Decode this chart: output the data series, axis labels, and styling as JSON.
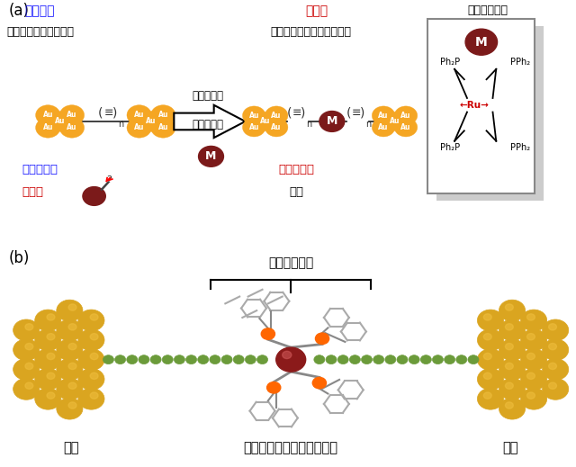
{
  "fig_width": 6.4,
  "fig_height": 5.19,
  "bg_color": "#ffffff",
  "panel_a_label": "(a)",
  "panel_b_label": "(b)",
  "theory_label": "理論予測",
  "theory_sublabel": "有機ポリインワイヤー",
  "arrow_label_line1": "金属鉗体の",
  "arrow_label_line2": "ドーピング",
  "research_label": "本研究",
  "research_sublabel": "有機金属ポリインワイヤー",
  "complex_site_label": "金属鉗体部位",
  "conductance_left_label": "高い伝導度",
  "explosive_label": "爆発性",
  "conductance_right_label": "高い伝導度",
  "stable_label": "安定",
  "electrode_label": "電極",
  "wire_label": "有機金属ポリインワイヤー",
  "metal_site_b_label": "金属鉗体部位",
  "au_color": "#F5A623",
  "m_color": "#7B1A1A",
  "chain_color": "#333333",
  "green_bead": "#6B9B3A",
  "gold_sphere": "#DAA520",
  "gold_dark": "#B8860B",
  "theory_text_color": "#1a1aff",
  "research_text_color": "#CC0000",
  "black": "#000000",
  "ru_color": "#CC0000",
  "ru_sphere_color": "#8B1A1A"
}
